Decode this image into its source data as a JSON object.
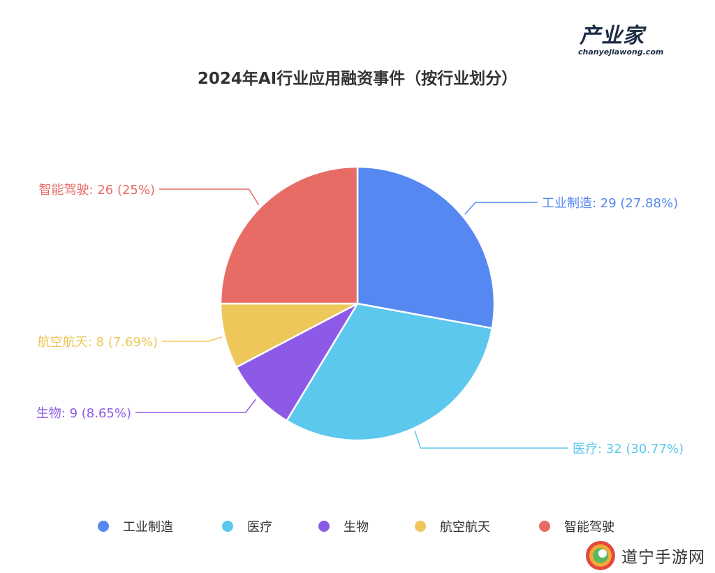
{
  "logo": {
    "main": "产业家",
    "sub": "chanyejiawong.com"
  },
  "chart_data": {
    "type": "pie",
    "title": "2024年AI行业应用融资事件（按行业划分）",
    "slices": [
      {
        "name": "工业制造",
        "value": 29,
        "percent": "27.88%",
        "color": "#5688f2"
      },
      {
        "name": "医疗",
        "value": 32,
        "percent": "30.77%",
        "color": "#5cc8ee"
      },
      {
        "name": "生物",
        "value": 9,
        "percent": "8.65%",
        "color": "#8c5ae6"
      },
      {
        "name": "航空航天",
        "value": 8,
        "percent": "7.69%",
        "color": "#edc75a"
      },
      {
        "name": "智能驾驶",
        "value": 26,
        "percent": "25%",
        "color": "#e86c66"
      }
    ],
    "legend_position": "bottom"
  },
  "watermark": {
    "text": "道宁手游网"
  }
}
